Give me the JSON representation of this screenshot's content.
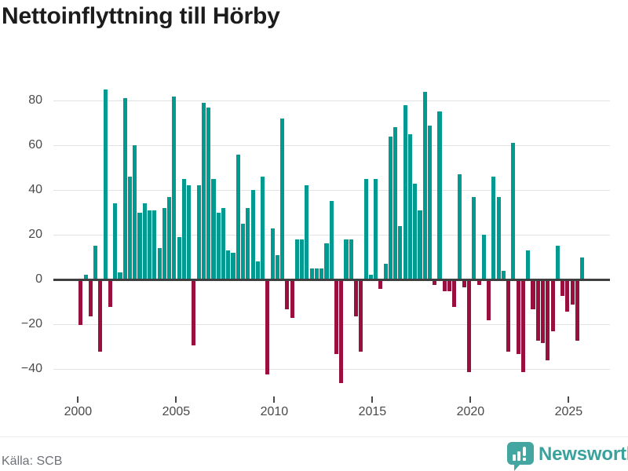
{
  "title": "Nettoinflyttning till Hörby",
  "source": "Källa: SCB",
  "branding": {
    "name": "Newsworthy",
    "icon": "bar-chart-pin-icon"
  },
  "colors": {
    "positive": "#009a91",
    "negative": "#990f3d",
    "brand": "#43a6a0",
    "grid": "#e2e2e2",
    "zero_line": "#3f3f3f",
    "text": "#1c1c1c",
    "axis_text": "#4c4c4c",
    "source_text": "#6e7276"
  },
  "chart_data": {
    "type": "bar",
    "title": "Nettoinflyttning till Hörby",
    "xlabel": "",
    "ylabel": "",
    "frequency": "quarterly",
    "start_period": "2000-Q1",
    "end_period": "2025-Q3",
    "x_tick_labels": [
      "2000",
      "2005",
      "2010",
      "2015",
      "2020",
      "2025"
    ],
    "y_ticks": [
      80,
      60,
      40,
      20,
      0,
      -20,
      -40
    ],
    "ylim": [
      -50,
      92
    ],
    "grid": true,
    "legend": false,
    "series": [
      {
        "name": "Nettoinflyttning",
        "values": [
          -20,
          2,
          -16,
          15,
          -32,
          85,
          -12,
          34,
          3,
          81,
          46,
          60,
          30,
          34,
          31,
          31,
          14,
          32,
          37,
          82,
          19,
          45,
          42,
          -29,
          42,
          79,
          77,
          45,
          30,
          32,
          13,
          12,
          56,
          25,
          32,
          40,
          8,
          46,
          -42,
          23,
          11,
          72,
          -13,
          -17,
          18,
          18,
          42,
          5,
          5,
          5,
          16,
          35,
          -33,
          -46,
          18,
          18,
          -16,
          -32,
          45,
          2,
          45,
          -4,
          7,
          64,
          68,
          24,
          78,
          65,
          43,
          31,
          84,
          69,
          -2,
          75,
          -5,
          -5,
          -12,
          47,
          -3,
          -41,
          37,
          -2,
          20,
          -18,
          46,
          37,
          4,
          -32,
          61,
          -33,
          -41,
          13,
          -13,
          -27,
          -28,
          -36,
          -23,
          15,
          -7,
          -14,
          -11,
          -27,
          10
        ]
      }
    ]
  }
}
